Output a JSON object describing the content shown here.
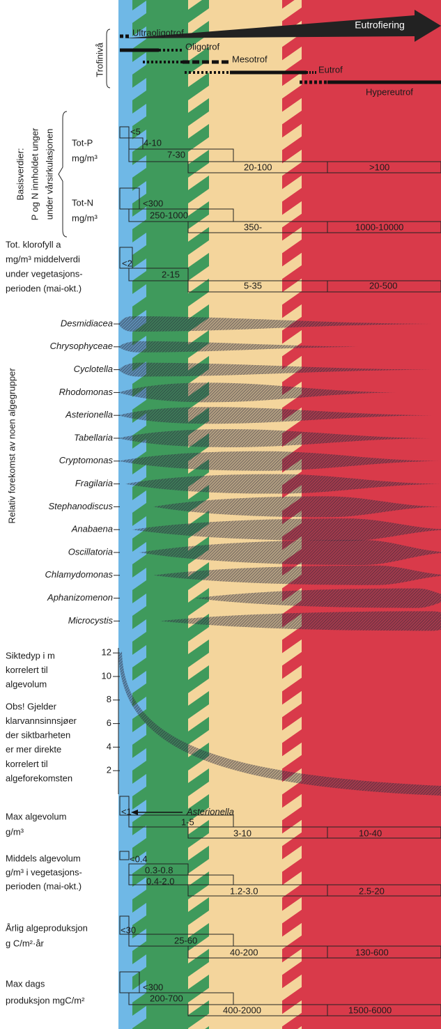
{
  "eutrophication_arrow": "Eutrofiering",
  "trophic_label": "Trofinivå",
  "trophic_levels": [
    "Ultraoligotrof",
    "Oligotrof",
    "Mesotrof",
    "Eutrof",
    "Hypereutrof"
  ],
  "basis_label": [
    "Basisverdier:",
    "P og N innholdet unger",
    "under vårsirkulasjonen"
  ],
  "parameters": [
    {
      "label": [
        "Tot-P",
        "mg/m³"
      ],
      "ranges": [
        "<5",
        "4-10",
        "7-30",
        "20-100",
        ">100"
      ]
    },
    {
      "label": [
        "Tot-N",
        "mg/m³"
      ],
      "ranges": [
        "<300",
        "250-1000",
        "350-",
        "1000-10000"
      ]
    },
    {
      "label": [
        "Tot. klorofyll a",
        "mg/m³ middelverdi",
        "under vegetasjons-",
        "perioden (mai-okt.)"
      ],
      "ranges": [
        "<2",
        "2-15",
        "5-35",
        "20-500"
      ]
    },
    {
      "label": [
        "Max algevolum",
        "g/m³"
      ],
      "ranges": [
        "<1",
        "1-5",
        "3-10",
        "10-40"
      ],
      "annotation": "Asterionella"
    },
    {
      "label": [
        "Middels algevolum",
        "g/m³ i vegetasjons-",
        "perioden (mai-okt.)"
      ],
      "ranges": [
        "<0.4",
        "0.3-0.8",
        "0.4-2.0",
        "1.2-3.0",
        "2.5-20"
      ]
    },
    {
      "label": [
        "Årlig algeproduksjon",
        "g C/m²·år"
      ],
      "ranges": [
        "<30",
        "25-60",
        "40-200",
        "130-600"
      ]
    },
    {
      "label": [
        "Max dags",
        "produksjon mgC/m²"
      ],
      "ranges": [
        "<300",
        "200-700",
        "400-2000",
        "1500-6000"
      ]
    }
  ],
  "algae_label": "Relativ forekomst av noen algegrupper",
  "algae": [
    "Desmidiacea",
    "Chrysophyceae",
    "Cyclotella",
    "Rhodomonas",
    "Asterionella",
    "Tabellaria",
    "Cryptomonas",
    "Fragilaria",
    "Stephanodiscus",
    "Anabaena",
    "Oscillatoria",
    "Chlamydomonas",
    "Aphanizomenon",
    "Microcystis"
  ],
  "secchi": {
    "label": [
      "Siktedyp i m",
      "korrelert til",
      "algevolum"
    ],
    "note": [
      "Obs! Gjelder",
      "klarvannsinnsjøer",
      "der siktbarheten",
      "er mer direkte",
      "korrelert til",
      "algeforekomsten"
    ],
    "ticks": [
      2,
      4,
      6,
      8,
      10,
      12
    ]
  }
}
